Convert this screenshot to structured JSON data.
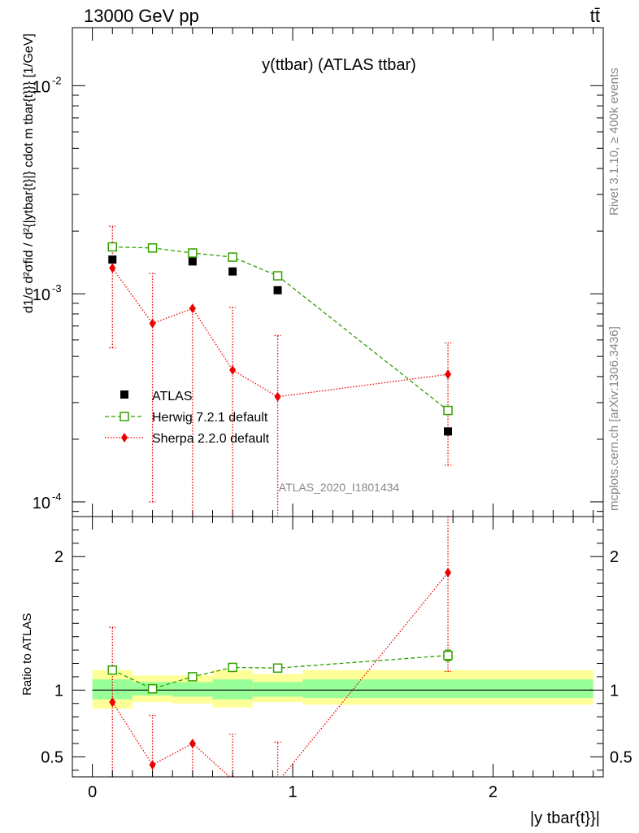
{
  "header": {
    "energy_label": "13000 GeV pp",
    "process_label": "tt̄"
  },
  "side_text": {
    "rivet": "Rivet 3.1.10, ≥ 400k events",
    "source": "mcplots.cern.ch [arXiv:1306.3436]"
  },
  "watermark": "ATLAS_2020_I1801434",
  "colors": {
    "atlas": "#000000",
    "herwig": "#33a000",
    "sherpa": "#ee0000",
    "band_outer": "#ffff99",
    "band_inner": "#99ff99"
  },
  "chart_data": [
    {
      "type": "scatter",
      "panel": "main",
      "title": "y(ttbar) (ATLAS ttbar)",
      "ylabel": "d1/σ d²σfid / d²{|ytbar{t}|} cdot m tbar{t}}} [1/GeV]",
      "yscale": "log",
      "ylim": [
        8.5e-05,
        0.019
      ],
      "ytick_labels": [
        {
          "value": 0.01,
          "base": "10",
          "exp": "-2"
        },
        {
          "value": 0.001,
          "base": "10",
          "exp": "-3"
        },
        {
          "value": 0.0001,
          "base": "10",
          "exp": "-4"
        }
      ],
      "xlim": [
        -0.1,
        2.55
      ],
      "legend_position": "center-left",
      "series": [
        {
          "name": "ATLAS",
          "marker": "filled-square",
          "color": "#000000",
          "x": [
            0.1,
            0.3,
            0.5,
            0.7,
            0.925,
            1.775
          ],
          "y": [
            0.00146,
            0.00165,
            0.00143,
            0.00128,
            0.00104,
            0.000218
          ]
        },
        {
          "name": "Herwig 7.2.1 default",
          "marker": "open-square",
          "line": "dashed",
          "color": "#33a000",
          "x": [
            0.1,
            0.3,
            0.5,
            0.7,
            0.925,
            1.775
          ],
          "y": [
            0.00168,
            0.00166,
            0.00157,
            0.0015,
            0.00122,
            0.000275
          ],
          "err": [
            6e-05,
            5e-05,
            5e-05,
            5e-05,
            4e-05,
            1e-05
          ]
        },
        {
          "name": "Sherpa 2.2.0 default",
          "marker": "filled-diamond",
          "line": "dotted",
          "color": "#ee0000",
          "x": [
            0.1,
            0.3,
            0.5,
            0.7,
            0.925,
            1.775
          ],
          "y": [
            0.00133,
            0.00072,
            0.00085,
            0.00043,
            0.00032,
            0.00041
          ],
          "err_lo": [
            0.00078,
            0.00062,
            0.00078,
            0.00038,
            0.00028,
            0.00026
          ],
          "err_hi": [
            0.00078,
            0.00053,
            0.0,
            0.00043,
            0.00031,
            0.00017
          ]
        }
      ]
    },
    {
      "type": "scatter",
      "panel": "ratio",
      "ylabel": "Ratio to ATLAS",
      "xlabel": "|y tbar{t}}|",
      "ylim": [
        0.35,
        2.3
      ],
      "yticks": [
        0.5,
        1,
        2
      ],
      "ytick_labels": [
        "0.5",
        "1",
        "2"
      ],
      "xlim": [
        -0.1,
        2.55
      ],
      "xticks": [
        0,
        1,
        2
      ],
      "xtick_labels": [
        "0",
        "1",
        "2"
      ],
      "bands": {
        "edges": [
          0.0,
          0.2,
          0.4,
          0.6,
          0.8,
          1.05,
          2.5
        ],
        "outer_lo": [
          0.86,
          0.91,
          0.9,
          0.87,
          0.91,
          0.89
        ],
        "outer_hi": [
          1.15,
          1.11,
          1.11,
          1.15,
          1.12,
          1.15
        ],
        "inner_lo": [
          0.93,
          0.96,
          0.95,
          0.93,
          0.95,
          0.94
        ],
        "inner_hi": [
          1.08,
          1.06,
          1.06,
          1.08,
          1.06,
          1.08
        ]
      },
      "series": [
        {
          "name": "Herwig 7.2.1 default",
          "color": "#33a000",
          "x": [
            0.1,
            0.3,
            0.5,
            0.7,
            0.925,
            1.775
          ],
          "y": [
            1.15,
            1.01,
            1.1,
            1.17,
            1.165,
            1.26
          ],
          "err": [
            0.03,
            0.03,
            0.03,
            0.03,
            0.03,
            0.04
          ]
        },
        {
          "name": "Sherpa 2.2.0 default",
          "color": "#ee0000",
          "x": [
            0.1,
            0.3,
            0.5,
            0.7,
            0.925,
            1.775
          ],
          "y": [
            0.91,
            0.44,
            0.6,
            0.33,
            0.31,
            1.88
          ],
          "err_lo": [
            0.56,
            0.38,
            0.55,
            0.3,
            0.27,
            0.74
          ],
          "err_hi": [
            0.56,
            0.37,
            0.0,
            0.34,
            0.3,
            0.75
          ]
        }
      ]
    }
  ]
}
